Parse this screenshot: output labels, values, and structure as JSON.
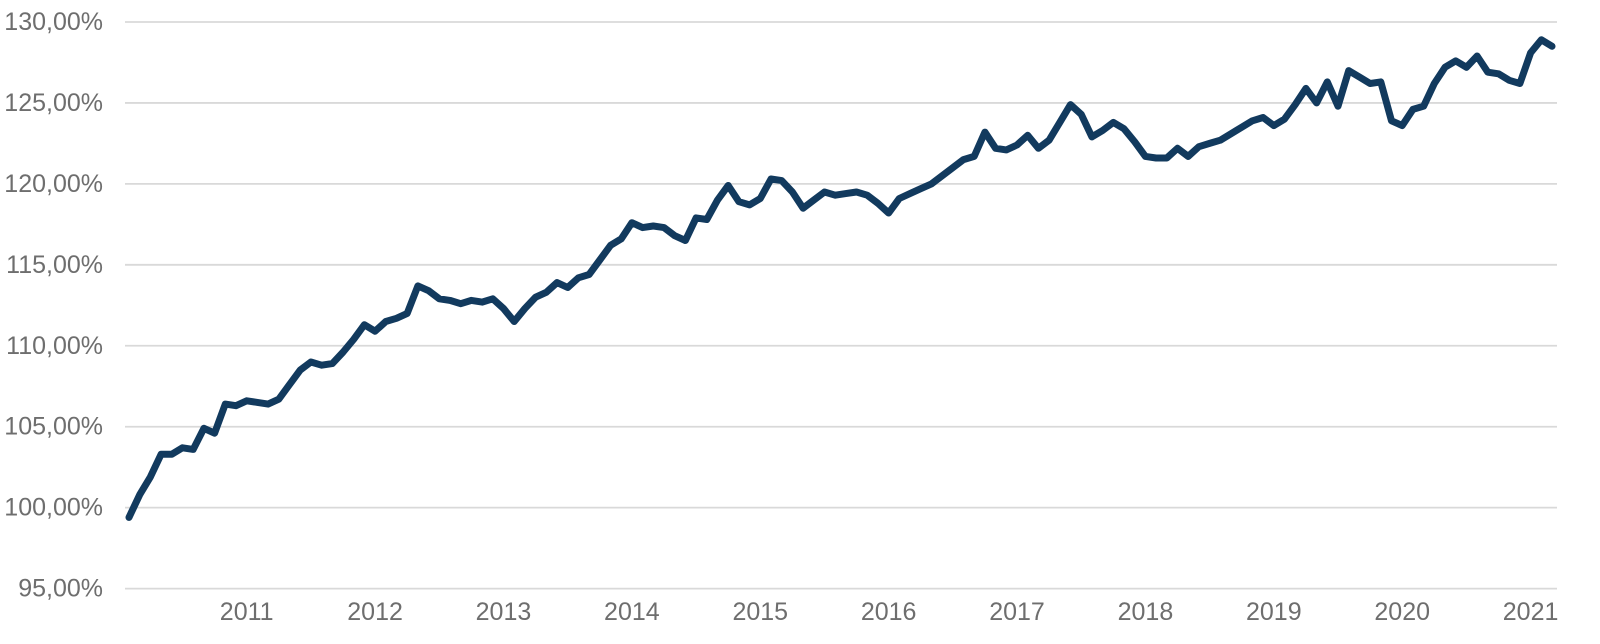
{
  "chart_data": {
    "type": "line",
    "title": "",
    "xlabel": "",
    "ylabel": "",
    "x_first_point": "2010-02",
    "x_frequency": "monthly",
    "values": [
      99.4,
      100.8,
      101.9,
      103.3,
      103.3,
      103.7,
      103.6,
      104.9,
      104.6,
      106.4,
      106.3,
      106.6,
      106.5,
      106.4,
      106.7,
      107.6,
      108.5,
      109.0,
      108.8,
      108.9,
      109.6,
      110.4,
      111.3,
      110.9,
      111.5,
      111.7,
      112.0,
      113.7,
      113.4,
      112.9,
      112.8,
      112.6,
      112.8,
      112.7,
      112.9,
      112.3,
      111.5,
      112.3,
      113.0,
      113.3,
      113.9,
      113.6,
      114.2,
      114.4,
      115.3,
      116.2,
      116.6,
      117.6,
      117.3,
      117.4,
      117.3,
      116.8,
      116.5,
      117.9,
      117.8,
      119.0,
      119.9,
      118.9,
      118.7,
      119.1,
      120.3,
      120.2,
      119.5,
      118.5,
      119.0,
      119.5,
      119.3,
      119.4,
      119.5,
      119.3,
      118.8,
      118.2,
      119.1,
      119.4,
      119.7,
      120.0,
      120.5,
      121.0,
      121.5,
      121.7,
      123.2,
      122.2,
      122.1,
      122.4,
      123.0,
      122.2,
      122.7,
      123.8,
      124.9,
      124.3,
      122.9,
      123.3,
      123.8,
      123.4,
      122.6,
      121.7,
      121.6,
      121.6,
      122.2,
      121.7,
      122.3,
      122.5,
      122.7,
      123.1,
      123.5,
      123.9,
      124.1,
      123.6,
      124.0,
      124.9,
      125.9,
      125.0,
      126.3,
      124.8,
      127.0,
      126.6,
      126.2,
      126.3,
      123.9,
      123.6,
      124.6,
      124.8,
      126.2,
      127.2,
      127.6,
      127.2,
      127.9,
      126.9,
      126.8,
      126.4,
      126.2,
      128.1,
      128.9,
      128.5
    ],
    "y_ticks": [
      {
        "value": 130,
        "label": "130,00%"
      },
      {
        "value": 125,
        "label": "125,00%"
      },
      {
        "value": 120,
        "label": "120,00%"
      },
      {
        "value": 115,
        "label": "115,00%"
      },
      {
        "value": 110,
        "label": "110,00%"
      },
      {
        "value": 105,
        "label": "105,00%"
      },
      {
        "value": 100,
        "label": "100,00%"
      },
      {
        "value": 95,
        "label": "95,00%"
      }
    ],
    "x_tick_years": [
      "2011",
      "2012",
      "2013",
      "2014",
      "2015",
      "2016",
      "2017",
      "2018",
      "2019",
      "2020",
      "2021"
    ],
    "ylim": [
      95,
      130
    ],
    "grid": "horizontal-only",
    "legend": "none",
    "colors": {
      "line": "#123a5e",
      "grid": "#d9d9d9",
      "tick_text": "#6e6e6e",
      "background": "#ffffff"
    }
  }
}
